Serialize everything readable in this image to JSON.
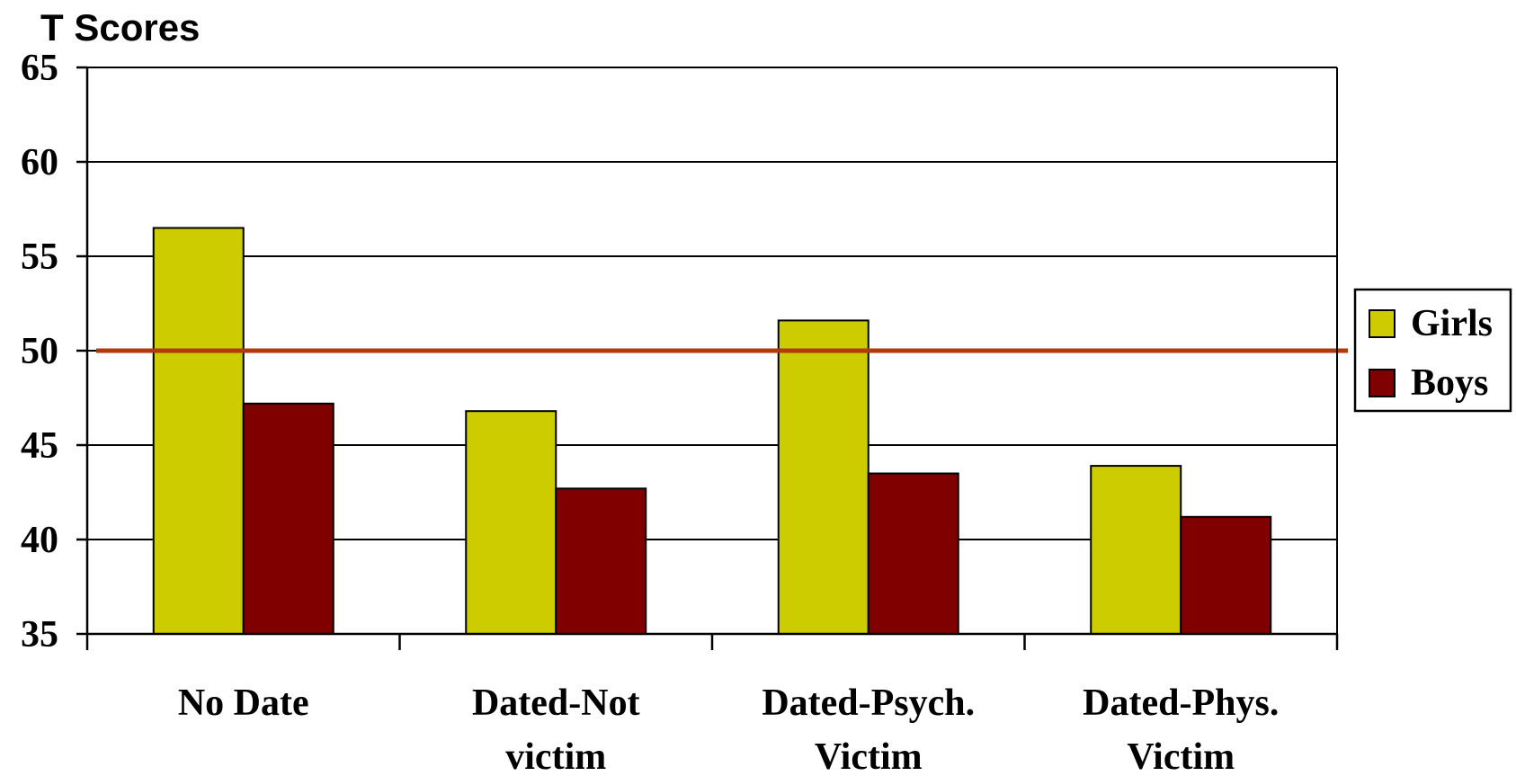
{
  "chart_data": {
    "type": "bar",
    "ylabel": "T Scores",
    "xlabel": "",
    "ylim": [
      35,
      65
    ],
    "yticks": [
      35,
      40,
      45,
      50,
      55,
      60,
      65
    ],
    "grid": true,
    "categories": [
      [
        "No Date"
      ],
      [
        "Dated-Not",
        "victim"
      ],
      [
        "Dated-Psych.",
        "Victim"
      ],
      [
        "Dated-Phys.",
        "Victim"
      ]
    ],
    "series": [
      {
        "name": "Girls",
        "color": "#cccc00",
        "values": [
          56.5,
          46.8,
          51.6,
          43.9
        ]
      },
      {
        "name": "Boys",
        "color": "#800000",
        "values": [
          47.2,
          42.7,
          43.5,
          41.2
        ]
      }
    ],
    "reference_line": {
      "value": 50,
      "color": "#b03a0a"
    },
    "legend_position": "right"
  }
}
